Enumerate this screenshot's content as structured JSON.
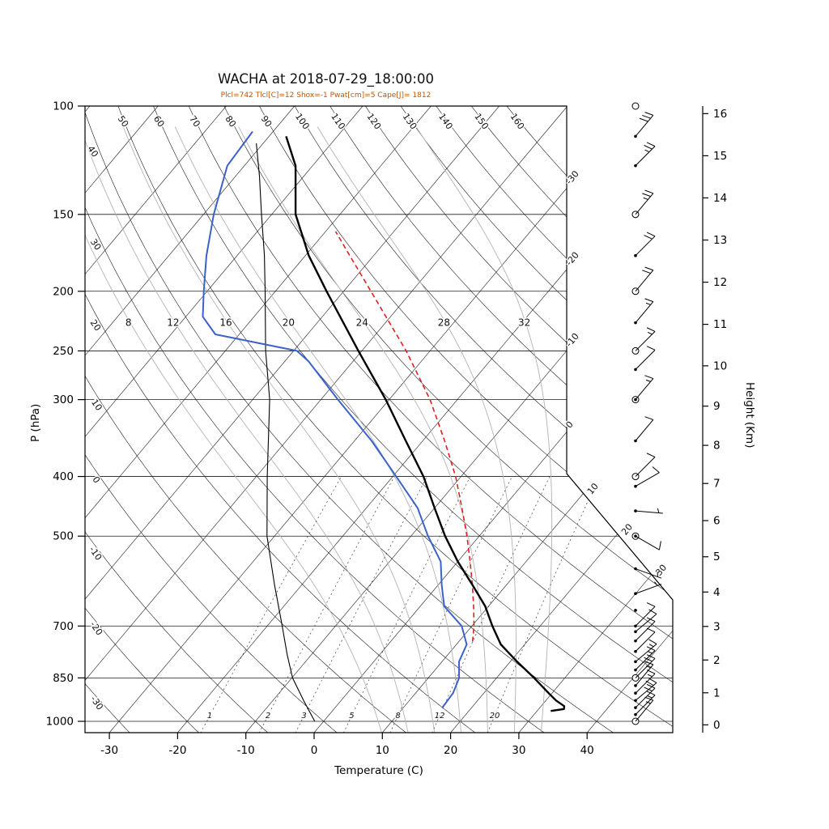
{
  "title": "WACHA at 2018-07-29_18:00:00",
  "subtitle": "Plcl=742 Tlcl[C]=12 Shox=-1 Pwat[cm]=5 Cape[J]= 1812",
  "axes": {
    "pressure_label": "P (hPa)",
    "pressure_ticks": [
      100,
      150,
      200,
      250,
      300,
      400,
      500,
      700,
      850,
      1000
    ],
    "temp_label": "Temperature (C)",
    "temp_ticks": [
      -30,
      -20,
      -10,
      0,
      10,
      20,
      30,
      40
    ],
    "height_label": "Height (Km)",
    "height_ticks": [
      0,
      1,
      2,
      3,
      4,
      5,
      6,
      7,
      8,
      9,
      10,
      11,
      12,
      13,
      14,
      15,
      16
    ]
  },
  "grid": {
    "isotherm_edge_labels": [
      -30,
      -20,
      -10,
      0,
      10,
      20,
      30
    ],
    "dry_adiabat_top_labels": [
      50,
      60,
      70,
      80,
      90,
      100,
      110,
      120,
      130,
      140,
      150,
      160
    ],
    "dry_adiabat_left_labels": [
      40,
      30,
      20,
      10,
      0,
      -10,
      -20,
      -30
    ],
    "moist_adiabat_values": [
      8,
      12,
      16,
      20,
      24,
      28,
      32
    ],
    "mixing_ratio_values": [
      1,
      2,
      3,
      5,
      8,
      12,
      20
    ]
  },
  "chart_data": {
    "type": "line",
    "description": "Skew-T log-P thermodynamic sounding diagram",
    "pressure_range_hPa": [
      100,
      1045
    ],
    "temp_axis_range_C": [
      -35,
      45
    ],
    "sounding": {
      "temperature_C_by_hPa": [
        [
          962,
          32
        ],
        [
          955,
          33.7
        ],
        [
          945,
          33.4
        ],
        [
          925,
          31.5
        ],
        [
          900,
          29.5
        ],
        [
          850,
          25.5
        ],
        [
          800,
          21
        ],
        [
          750,
          16.5
        ],
        [
          700,
          13
        ],
        [
          650,
          9.5
        ],
        [
          600,
          5
        ],
        [
          550,
          0
        ],
        [
          500,
          -5
        ],
        [
          450,
          -10
        ],
        [
          400,
          -15.5
        ],
        [
          350,
          -22.5
        ],
        [
          300,
          -30.5
        ],
        [
          250,
          -40.5
        ],
        [
          200,
          -52.5
        ],
        [
          175,
          -59.5
        ],
        [
          150,
          -66.5
        ],
        [
          125,
          -72.5
        ],
        [
          112,
          -77.5
        ]
      ],
      "dewpoint_C_by_hPa": [
        [
          950,
          15.7
        ],
        [
          900,
          15.5
        ],
        [
          850,
          14.5
        ],
        [
          800,
          12.5
        ],
        [
          750,
          11.5
        ],
        [
          700,
          8.5
        ],
        [
          650,
          3.5
        ],
        [
          600,
          0.5
        ],
        [
          550,
          -2.5
        ],
        [
          500,
          -7.5
        ],
        [
          450,
          -12.5
        ],
        [
          400,
          -19.5
        ],
        [
          350,
          -27.5
        ],
        [
          300,
          -37.5
        ],
        [
          260,
          -46.5
        ],
        [
          250,
          -49.5
        ],
        [
          235,
          -63.5
        ],
        [
          220,
          -67.5
        ],
        [
          200,
          -70.5
        ],
        [
          175,
          -74.5
        ],
        [
          150,
          -78.5
        ],
        [
          125,
          -82.5
        ],
        [
          110,
          -83
        ]
      ],
      "parcel_C_by_hPa": [
        [
          742,
          12
        ],
        [
          700,
          10.3
        ],
        [
          650,
          7.8
        ],
        [
          600,
          5
        ],
        [
          550,
          1.8
        ],
        [
          500,
          -1.8
        ],
        [
          450,
          -6
        ],
        [
          400,
          -10.8
        ],
        [
          350,
          -16.8
        ],
        [
          300,
          -24
        ],
        [
          250,
          -33.5
        ],
        [
          200,
          -46
        ],
        [
          175,
          -53.5
        ],
        [
          160,
          -58.5
        ]
      ],
      "aux_profile_C_by_hPa": [
        [
          1000,
          -1.3
        ],
        [
          925,
          -5.5
        ],
        [
          850,
          -9.9
        ],
        [
          780,
          -13.5
        ],
        [
          700,
          -17.8
        ],
        [
          600,
          -24
        ],
        [
          500,
          -31.1
        ],
        [
          400,
          -38.4
        ],
        [
          300,
          -47.5
        ],
        [
          250,
          -54.1
        ],
        [
          200,
          -61.5
        ],
        [
          175,
          -66
        ],
        [
          150,
          -71.5
        ],
        [
          130,
          -76.5
        ],
        [
          115,
          -81
        ]
      ]
    },
    "wind_barbs": [
      {
        "p": 1000,
        "marker": "circle",
        "speed": 15,
        "dir": 40
      },
      {
        "p": 975,
        "marker": "dot",
        "speed": 15,
        "dir": 45
      },
      {
        "p": 950,
        "marker": "dot",
        "speed": 20,
        "dir": 45
      },
      {
        "p": 925,
        "marker": "dot",
        "speed": 20,
        "dir": 50
      },
      {
        "p": 900,
        "marker": "dot",
        "speed": 15,
        "dir": 45
      },
      {
        "p": 875,
        "marker": "dot",
        "speed": 15,
        "dir": 40
      },
      {
        "p": 850,
        "marker": "circle",
        "speed": 20,
        "dir": 45
      },
      {
        "p": 825,
        "marker": "dot",
        "speed": 15,
        "dir": 45
      },
      {
        "p": 800,
        "marker": "dot",
        "speed": 15,
        "dir": 50
      },
      {
        "p": 770,
        "marker": "dot",
        "speed": 10,
        "dir": 45
      },
      {
        "p": 740,
        "marker": "dot",
        "speed": 10,
        "dir": 45
      },
      {
        "p": 715,
        "marker": "dot",
        "speed": 10,
        "dir": 50
      },
      {
        "p": 700,
        "marker": "dot",
        "speed": 10,
        "dir": 45
      },
      {
        "p": 660,
        "marker": "dot",
        "speed": 0,
        "dir": 0
      },
      {
        "p": 620,
        "marker": "dot",
        "speed": 5,
        "dir": 70
      },
      {
        "p": 565,
        "marker": "dot",
        "speed": 5,
        "dir": 110
      },
      {
        "p": 500,
        "marker": "circle-dot",
        "speed": 10,
        "dir": 120
      },
      {
        "p": 455,
        "marker": "dot",
        "speed": 5,
        "dir": 95
      },
      {
        "p": 415,
        "marker": "dot",
        "speed": 10,
        "dir": 60
      },
      {
        "p": 400,
        "marker": "circle",
        "speed": 10,
        "dir": 45
      },
      {
        "p": 350,
        "marker": "dot",
        "speed": 10,
        "dir": 40
      },
      {
        "p": 300,
        "marker": "circle-dot",
        "speed": 15,
        "dir": 40
      },
      {
        "p": 268,
        "marker": "dot",
        "speed": 10,
        "dir": 45
      },
      {
        "p": 250,
        "marker": "circle",
        "speed": 15,
        "dir": 45
      },
      {
        "p": 225,
        "marker": "dot",
        "speed": 15,
        "dir": 40
      },
      {
        "p": 200,
        "marker": "circle",
        "speed": 20,
        "dir": 40
      },
      {
        "p": 175,
        "marker": "dot",
        "speed": 20,
        "dir": 45
      },
      {
        "p": 150,
        "marker": "circle",
        "speed": 25,
        "dir": 40
      },
      {
        "p": 125,
        "marker": "dot",
        "speed": 25,
        "dir": 45
      },
      {
        "p": 112,
        "marker": "dot",
        "speed": 30,
        "dir": 40
      },
      {
        "p": 100,
        "marker": "circle",
        "speed": 0,
        "dir": 0
      }
    ]
  },
  "colors": {
    "temperature": "#000000",
    "dewpoint": "#3a62c9",
    "parcel": "#e02020",
    "aux_profile": "#000000",
    "moist_adiabat": "#b3b3b3",
    "mixing_ratio": "#3d3d3d",
    "grid": "#1a1a1a",
    "subtitle": "#c35400"
  }
}
